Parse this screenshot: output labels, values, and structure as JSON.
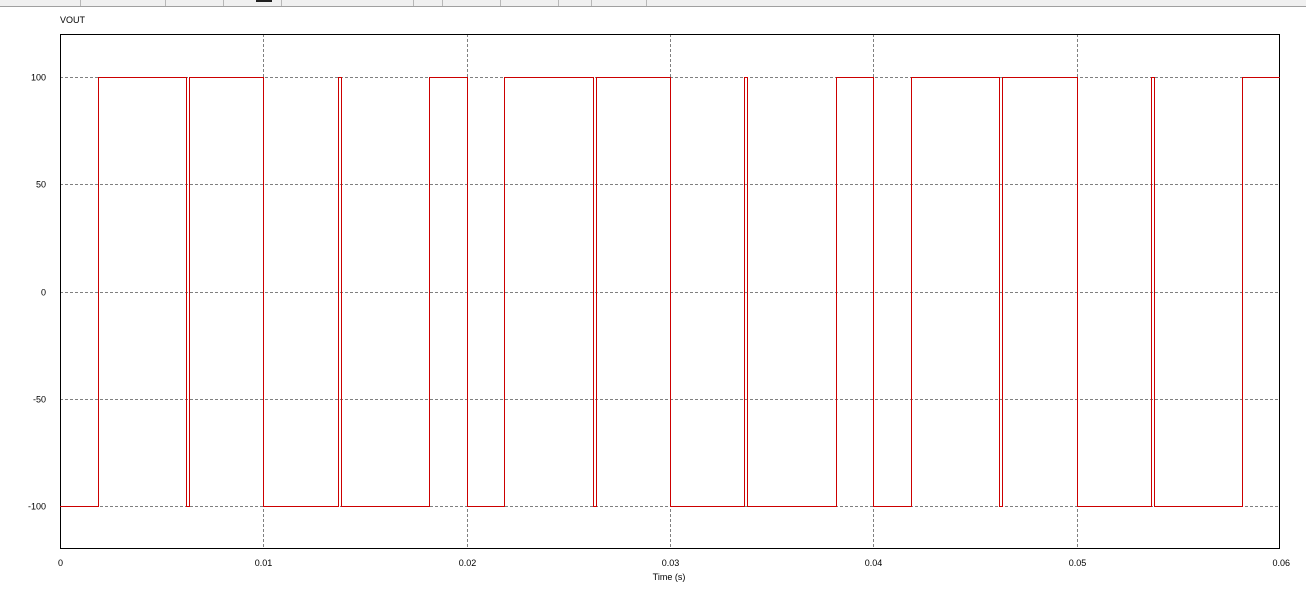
{
  "colors": {
    "trace": "#cc0000",
    "grid": "#808080",
    "frame": "#000000",
    "background": "#ffffff",
    "legend_text": "#cc0000"
  },
  "chart_data": {
    "type": "line",
    "legend": "VOUT",
    "xlabel": "Time (s)",
    "ylabel": "",
    "xlim": [
      0,
      0.06
    ],
    "ylim": [
      -120,
      120
    ],
    "grid": true,
    "xticks": [
      0,
      0.01,
      0.02,
      0.03,
      0.04,
      0.05,
      0.06
    ],
    "xtick_labels": [
      "0",
      "0.01",
      "0.02",
      "0.03",
      "0.04",
      "0.05",
      "0.06"
    ],
    "yticks": [
      100,
      50,
      0,
      -50,
      -100
    ],
    "ytick_labels": [
      "100",
      "50",
      "0",
      "-50",
      "-100"
    ],
    "series": [
      {
        "name": "VOUT",
        "step": true,
        "initial": -100,
        "transitions": [
          [
            0.00185,
            100
          ],
          [
            0.0062,
            -100
          ],
          [
            0.00635,
            100
          ],
          [
            0.01,
            -100
          ],
          [
            0.01365,
            100
          ],
          [
            0.0138,
            -100
          ],
          [
            0.01815,
            100
          ],
          [
            0.02,
            -100
          ],
          [
            0.02185,
            100
          ],
          [
            0.0262,
            -100
          ],
          [
            0.02635,
            100
          ],
          [
            0.03,
            -100
          ],
          [
            0.03365,
            100
          ],
          [
            0.0338,
            -100
          ],
          [
            0.03815,
            100
          ],
          [
            0.04,
            -100
          ],
          [
            0.04185,
            100
          ],
          [
            0.0462,
            -100
          ],
          [
            0.04635,
            100
          ],
          [
            0.05,
            -100
          ],
          [
            0.05365,
            100
          ],
          [
            0.0538,
            -100
          ],
          [
            0.05815,
            100
          ]
        ],
        "end": 0.06
      }
    ]
  }
}
